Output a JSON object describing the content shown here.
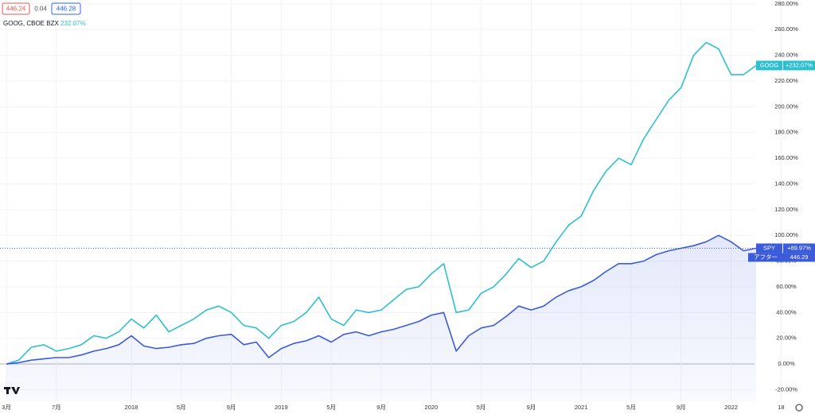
{
  "chart_data": {
    "type": "line",
    "header": {
      "bid": 446.24,
      "spread": 0.04,
      "ask": 446.28,
      "symbol": "GOOG, CBOE BZX",
      "change": "232.07%"
    },
    "categories": [
      "3月",
      null,
      null,
      null,
      "7月",
      null,
      null,
      null,
      null,
      null,
      "2018",
      null,
      null,
      null,
      "5月",
      null,
      null,
      null,
      "9月",
      null,
      null,
      null,
      "2019",
      null,
      null,
      null,
      "5月",
      null,
      null,
      null,
      "9月",
      null,
      null,
      null,
      "2020",
      null,
      null,
      null,
      "5月",
      null,
      null,
      null,
      "9月",
      null,
      null,
      null,
      "2021",
      null,
      null,
      null,
      "5月",
      null,
      null,
      null,
      "9月",
      null,
      null,
      null,
      "2022",
      null,
      null,
      null,
      "18"
    ],
    "series": [
      {
        "name": "GOOG",
        "color": "#2ebfd1",
        "values": [
          0,
          3,
          13,
          15,
          10,
          12,
          15,
          22,
          20,
          25,
          35,
          28,
          38,
          25,
          30,
          35,
          42,
          45,
          40,
          30,
          28,
          20,
          30,
          33,
          40,
          52,
          35,
          30,
          42,
          40,
          42,
          50,
          58,
          60,
          70,
          78,
          40,
          42,
          55,
          60,
          70,
          82,
          75,
          80,
          95,
          108,
          115,
          135,
          150,
          160,
          155,
          175,
          190,
          205,
          215,
          240,
          250,
          245,
          225,
          225,
          232.07,
          null,
          null
        ],
        "value_labels": [
          null,
          null,
          null,
          null,
          null,
          null,
          null,
          null,
          null,
          null,
          null,
          null,
          null,
          null,
          null,
          null,
          null,
          null,
          null,
          null,
          null,
          null,
          null,
          null,
          null,
          null,
          null,
          null,
          null,
          null,
          null,
          null,
          null,
          null,
          null,
          null,
          null,
          null,
          null,
          null,
          null,
          null,
          null,
          null,
          null,
          null,
          null,
          null,
          null,
          null,
          null,
          null,
          null,
          null,
          null,
          null,
          null,
          null,
          null,
          null,
          "+232.07%",
          null,
          null
        ]
      },
      {
        "name": "SPY",
        "color": "#3b5bdb",
        "area": true,
        "values": [
          0,
          1,
          3,
          4,
          5,
          5,
          7,
          10,
          12,
          15,
          22,
          14,
          12,
          13,
          15,
          16,
          20,
          22,
          23,
          15,
          17,
          5,
          12,
          16,
          18,
          22,
          17,
          23,
          25,
          22,
          25,
          27,
          30,
          33,
          38,
          40,
          10,
          22,
          28,
          30,
          37,
          45,
          42,
          45,
          52,
          57,
          60,
          65,
          72,
          78,
          78,
          80,
          85,
          88,
          90,
          92,
          95,
          100,
          95,
          88,
          89.97,
          null,
          null
        ],
        "value_labels": [
          null,
          null,
          null,
          null,
          null,
          null,
          null,
          null,
          null,
          null,
          null,
          null,
          null,
          null,
          null,
          null,
          null,
          null,
          null,
          null,
          null,
          null,
          null,
          null,
          null,
          null,
          null,
          null,
          null,
          null,
          null,
          null,
          null,
          null,
          null,
          null,
          null,
          null,
          null,
          null,
          null,
          null,
          null,
          null,
          null,
          null,
          null,
          null,
          null,
          null,
          null,
          null,
          null,
          null,
          null,
          null,
          null,
          null,
          null,
          null,
          "+89.97%",
          null,
          null
        ]
      }
    ],
    "extended_hours": {
      "label": "アフター",
      "price": 446.29
    },
    "ylim": [
      -29,
      283
    ],
    "yticks": [
      {
        "value": -20,
        "label": "-20.00%"
      },
      {
        "value": 0,
        "label": "0.00%"
      },
      {
        "value": 20,
        "label": "20.00%"
      },
      {
        "value": 40,
        "label": "40.00%"
      },
      {
        "value": 60,
        "label": "60.00%"
      },
      {
        "value": 80,
        "label": "80.00%"
      },
      {
        "value": 100,
        "label": "100.00%"
      },
      {
        "value": 120,
        "label": "120.00%"
      },
      {
        "value": 140,
        "label": "140.00%"
      },
      {
        "value": 160,
        "label": "160.00%"
      },
      {
        "value": 180,
        "label": "180.00%"
      },
      {
        "value": 200,
        "label": "200.00%"
      },
      {
        "value": 220,
        "label": "220.00%"
      },
      {
        "value": 240,
        "label": "240.00%"
      },
      {
        "value": 260,
        "label": "260.00%"
      },
      {
        "value": 280,
        "label": "280.00%"
      }
    ],
    "grid": true
  }
}
